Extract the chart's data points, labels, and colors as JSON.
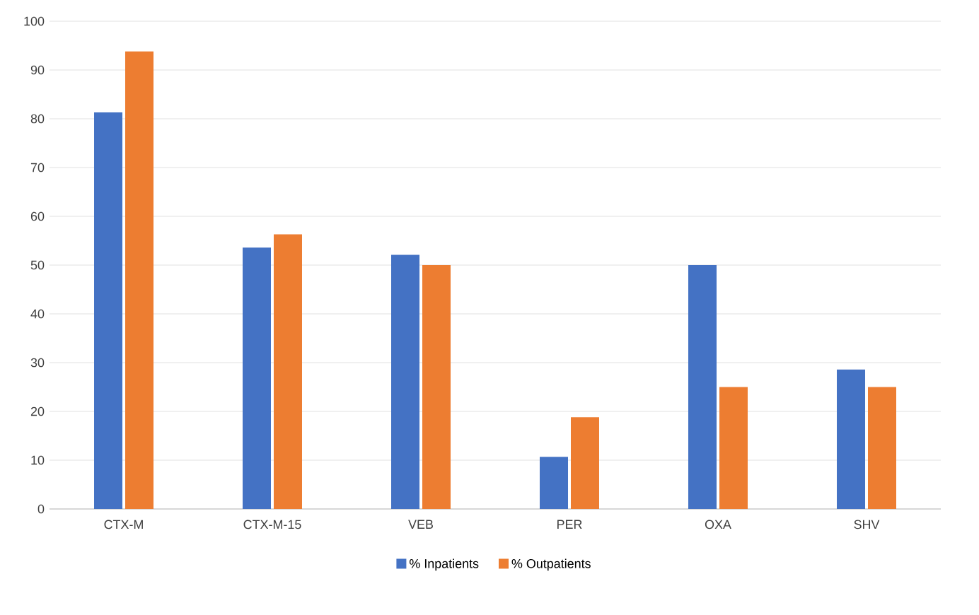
{
  "chart_data": {
    "type": "bar",
    "categories": [
      "CTX-M",
      "CTX-M-15",
      "VEB",
      "PER",
      "OXA",
      "SHV"
    ],
    "series": [
      {
        "name": "% Inpatients",
        "color": "#4472c4",
        "values": [
          81.3,
          53.6,
          52.1,
          10.7,
          50,
          28.6
        ]
      },
      {
        "name": "% Outpatients",
        "color": "#ed7d31",
        "values": [
          93.8,
          56.3,
          50,
          18.8,
          25,
          25
        ]
      }
    ],
    "ylim": [
      0,
      100
    ],
    "yticks": [
      0,
      10,
      20,
      30,
      40,
      50,
      60,
      70,
      80,
      90,
      100
    ],
    "grid": "y",
    "legend": "bottom"
  }
}
